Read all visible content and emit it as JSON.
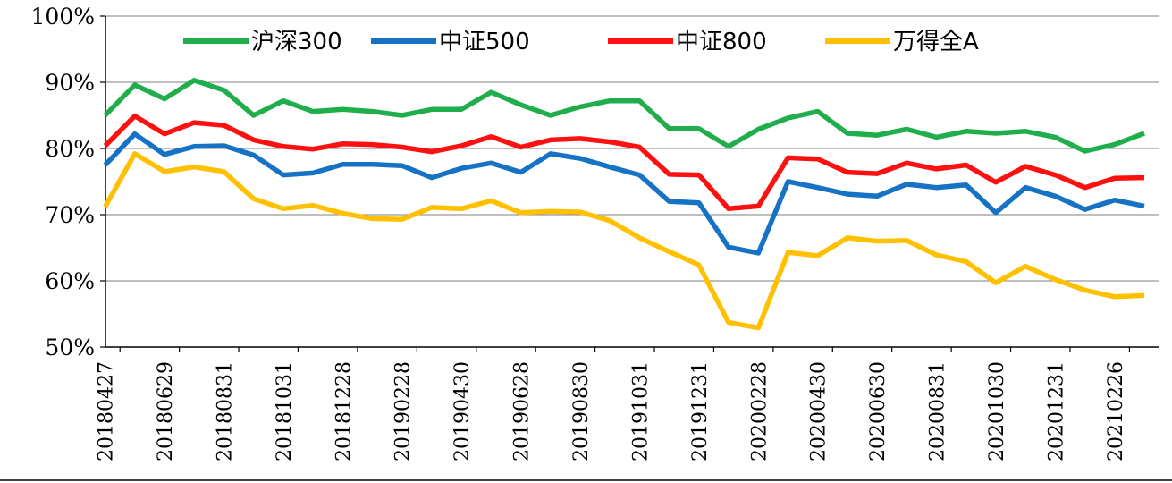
{
  "chart_data": {
    "type": "line",
    "title": "",
    "xlabel": "",
    "ylabel": "",
    "ylim": [
      50,
      100
    ],
    "ytick_values": [
      50,
      60,
      70,
      80,
      90,
      100
    ],
    "ytick_labels": [
      "50%",
      "60%",
      "70%",
      "80%",
      "90%",
      "100%"
    ],
    "grid": "horizontal",
    "legend_position": "top",
    "x": [
      "20180427",
      "20180531",
      "20180629",
      "20180731",
      "20180831",
      "20180928",
      "20181031",
      "20181130",
      "20181228",
      "20190131",
      "20190228",
      "20190329",
      "20190430",
      "20190531",
      "20190628",
      "20190731",
      "20190830",
      "20190930",
      "20191031",
      "20191129",
      "20191231",
      "20200123",
      "20200228",
      "20200331",
      "20200430",
      "20200529",
      "20200630",
      "20200731",
      "20200831",
      "20200930",
      "20201030",
      "20201130",
      "20201231",
      "20210129",
      "20210226",
      "20210331"
    ],
    "xtick_labels": [
      "20180427",
      "20180629",
      "20180831",
      "20181031",
      "20181228",
      "20190228",
      "20190430",
      "20190628",
      "20190830",
      "20191031",
      "20191231",
      "20200228",
      "20200430",
      "20200630",
      "20200831",
      "20201030",
      "20201231",
      "20210226"
    ],
    "series": [
      {
        "name": "沪深300",
        "color": "#1FAE4B",
        "values": [
          85.0,
          89.6,
          87.5,
          90.3,
          88.8,
          85.0,
          87.2,
          85.6,
          85.9,
          85.6,
          85.0,
          85.9,
          85.9,
          88.5,
          86.6,
          85.0,
          86.3,
          87.2,
          87.2,
          83.0,
          83.0,
          80.3,
          82.9,
          84.6,
          85.6,
          82.3,
          82.0,
          82.9,
          81.7,
          82.6,
          82.3,
          82.6,
          81.7,
          79.6,
          80.6,
          82.3
        ]
      },
      {
        "name": "中证500",
        "color": "#1672C4",
        "values": [
          77.5,
          82.2,
          79.1,
          80.3,
          80.4,
          79.0,
          76.0,
          76.3,
          77.6,
          77.6,
          77.4,
          75.6,
          77.0,
          77.8,
          76.4,
          79.2,
          78.5,
          77.2,
          76.0,
          72.0,
          71.8,
          65.1,
          64.2,
          75.0,
          74.1,
          73.1,
          72.8,
          74.6,
          74.1,
          74.5,
          70.3,
          74.1,
          72.8,
          70.8,
          72.2,
          71.3
        ]
      },
      {
        "name": "中证800",
        "color": "#FF1010",
        "values": [
          80.4,
          84.9,
          82.2,
          83.9,
          83.5,
          81.3,
          80.3,
          79.9,
          80.7,
          80.6,
          80.2,
          79.5,
          80.4,
          81.8,
          80.2,
          81.3,
          81.5,
          81.0,
          80.2,
          76.1,
          76.0,
          70.9,
          71.3,
          78.6,
          78.4,
          76.4,
          76.2,
          77.8,
          76.9,
          77.5,
          74.9,
          77.3,
          76.0,
          74.1,
          75.5,
          75.6
        ]
      },
      {
        "name": "万得全A",
        "color": "#FFC000",
        "values": [
          71.2,
          79.2,
          76.5,
          77.2,
          76.5,
          72.4,
          70.9,
          71.4,
          70.2,
          69.4,
          69.3,
          71.1,
          70.9,
          72.1,
          70.3,
          70.5,
          70.4,
          69.1,
          66.5,
          64.4,
          62.4,
          53.7,
          52.9,
          64.3,
          63.8,
          66.5,
          66.0,
          66.1,
          63.9,
          62.9,
          59.7,
          62.2,
          60.2,
          58.6,
          57.6,
          57.8
        ]
      }
    ]
  }
}
